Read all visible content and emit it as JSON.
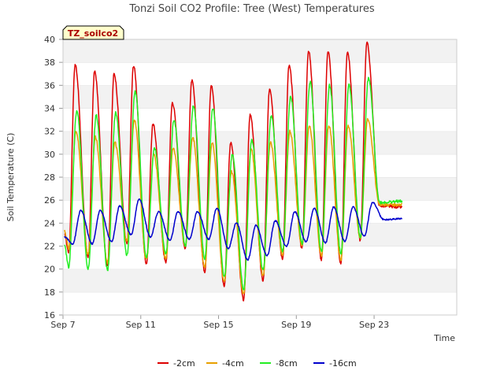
{
  "chart_data": {
    "type": "line",
    "title": "Tonzi Soil CO2 Profile: Tree (West) Temperatures",
    "xlabel": "Time",
    "ylabel": "Soil Temperature (C)",
    "badge": "TZ_soilco2",
    "ylim": [
      16,
      40
    ],
    "y_ticks": [
      16,
      18,
      20,
      22,
      24,
      26,
      28,
      30,
      32,
      34,
      36,
      38,
      40
    ],
    "x_range": [
      "2024-09-07",
      "2024-09-25"
    ],
    "x_ticks": [
      {
        "date": "2024-09-07",
        "label": "Sep 7"
      },
      {
        "date": "2024-09-11",
        "label": "Sep 11"
      },
      {
        "date": "2024-09-15",
        "label": "Sep 15"
      },
      {
        "date": "2024-09-19",
        "label": "Sep 19"
      },
      {
        "date": "2024-09-23",
        "label": "Sep 23"
      }
    ],
    "grid": "horizontal-bands",
    "legend_position": "bottom",
    "colors": {
      "-2cm": "#dd0000",
      "-4cm": "#e8a000",
      "-8cm": "#22ee22",
      "-16cm": "#0000cc"
    },
    "series": [
      {
        "name": "-2cm",
        "daily_min": [
          21.5,
          21.0,
          20.3,
          22.2,
          20.5,
          20.6,
          21.8,
          19.8,
          18.5,
          17.3,
          19.0,
          20.9,
          21.8,
          20.8,
          20.4,
          22.5,
          25.5
        ],
        "daily_max": [
          37.8,
          37.2,
          37.0,
          37.7,
          32.6,
          34.5,
          36.4,
          36.0,
          31.0,
          33.4,
          35.7,
          37.7,
          39.0,
          39.0,
          38.9,
          39.7,
          25.5
        ],
        "peak_times": [
          "2024-09-07T15:00",
          "2024-09-08T15:00",
          "2024-09-09T15:00",
          "2024-09-10T15:00",
          "2024-09-11T15:00",
          "2024-09-12T15:00",
          "2024-09-13T15:00",
          "2024-09-14T15:00",
          "2024-09-15T15:00",
          "2024-09-16T15:00",
          "2024-09-17T15:00",
          "2024-09-18T15:00",
          "2024-09-19T15:00",
          "2024-09-20T15:00",
          "2024-09-21T15:00",
          "2024-09-22T15:00"
        ],
        "start": 23.0,
        "end": 25.4
      },
      {
        "name": "-4cm",
        "daily_min": [
          21.8,
          21.3,
          20.6,
          22.4,
          20.8,
          20.9,
          22.0,
          20.2,
          18.9,
          17.8,
          19.4,
          21.2,
          22.0,
          21.1,
          20.8,
          22.7,
          25.6
        ],
        "daily_max": [
          32.0,
          31.5,
          31.0,
          33.0,
          30.0,
          30.5,
          31.5,
          31.0,
          28.5,
          30.5,
          31.0,
          32.0,
          32.5,
          32.5,
          32.5,
          33.0,
          25.6
        ],
        "peak_times": [
          "2024-09-07T16:00",
          "2024-09-08T16:00",
          "2024-09-09T16:00",
          "2024-09-10T16:00",
          "2024-09-11T16:00",
          "2024-09-12T16:00",
          "2024-09-13T16:00",
          "2024-09-14T16:00",
          "2024-09-15T16:00",
          "2024-09-16T16:00",
          "2024-09-17T16:00",
          "2024-09-18T16:00",
          "2024-09-19T16:00",
          "2024-09-20T16:00",
          "2024-09-21T16:00",
          "2024-09-22T16:00"
        ],
        "start": 23.3,
        "end": 25.6
      },
      {
        "name": "-8cm",
        "daily_min": [
          20.2,
          20.0,
          19.9,
          21.2,
          21.0,
          21.3,
          22.0,
          20.9,
          19.3,
          18.2,
          19.9,
          21.5,
          22.2,
          21.5,
          21.3,
          22.8,
          25.8
        ],
        "daily_max": [
          33.8,
          33.4,
          33.6,
          35.5,
          30.5,
          33.0,
          34.2,
          34.0,
          30.0,
          31.2,
          33.3,
          35.0,
          36.3,
          36.0,
          36.0,
          36.6,
          25.8
        ],
        "peak_times": [
          "2024-09-07T17:00",
          "2024-09-08T17:00",
          "2024-09-09T17:00",
          "2024-09-10T17:00",
          "2024-09-11T17:00",
          "2024-09-12T17:00",
          "2024-09-13T17:00",
          "2024-09-14T17:00",
          "2024-09-15T17:00",
          "2024-09-16T17:00",
          "2024-09-17T17:00",
          "2024-09-18T17:00",
          "2024-09-19T17:00",
          "2024-09-20T17:00",
          "2024-09-21T17:00",
          "2024-09-22T17:00"
        ],
        "start": 22.0,
        "end": 25.9
      },
      {
        "name": "-16cm",
        "daily_min": [
          22.2,
          22.2,
          22.4,
          23.0,
          22.8,
          22.5,
          22.6,
          22.6,
          21.8,
          20.8,
          21.2,
          22.0,
          22.4,
          22.3,
          22.4,
          22.9,
          24.3
        ],
        "daily_max": [
          25.1,
          25.1,
          25.5,
          26.1,
          25.0,
          25.0,
          25.0,
          25.3,
          24.0,
          23.8,
          24.2,
          25.0,
          25.3,
          25.4,
          25.4,
          25.8,
          24.3
        ],
        "peak_times": [
          "2024-09-07T22:00",
          "2024-09-08T22:00",
          "2024-09-09T22:00",
          "2024-09-10T22:00",
          "2024-09-11T22:00",
          "2024-09-12T22:00",
          "2024-09-13T22:00",
          "2024-09-14T22:00",
          "2024-09-15T22:00",
          "2024-09-16T22:00",
          "2024-09-17T22:00",
          "2024-09-18T22:00",
          "2024-09-19T22:00",
          "2024-09-20T22:00",
          "2024-09-21T22:00",
          "2024-09-22T22:00"
        ],
        "start": 22.8,
        "end": 24.4
      }
    ]
  }
}
